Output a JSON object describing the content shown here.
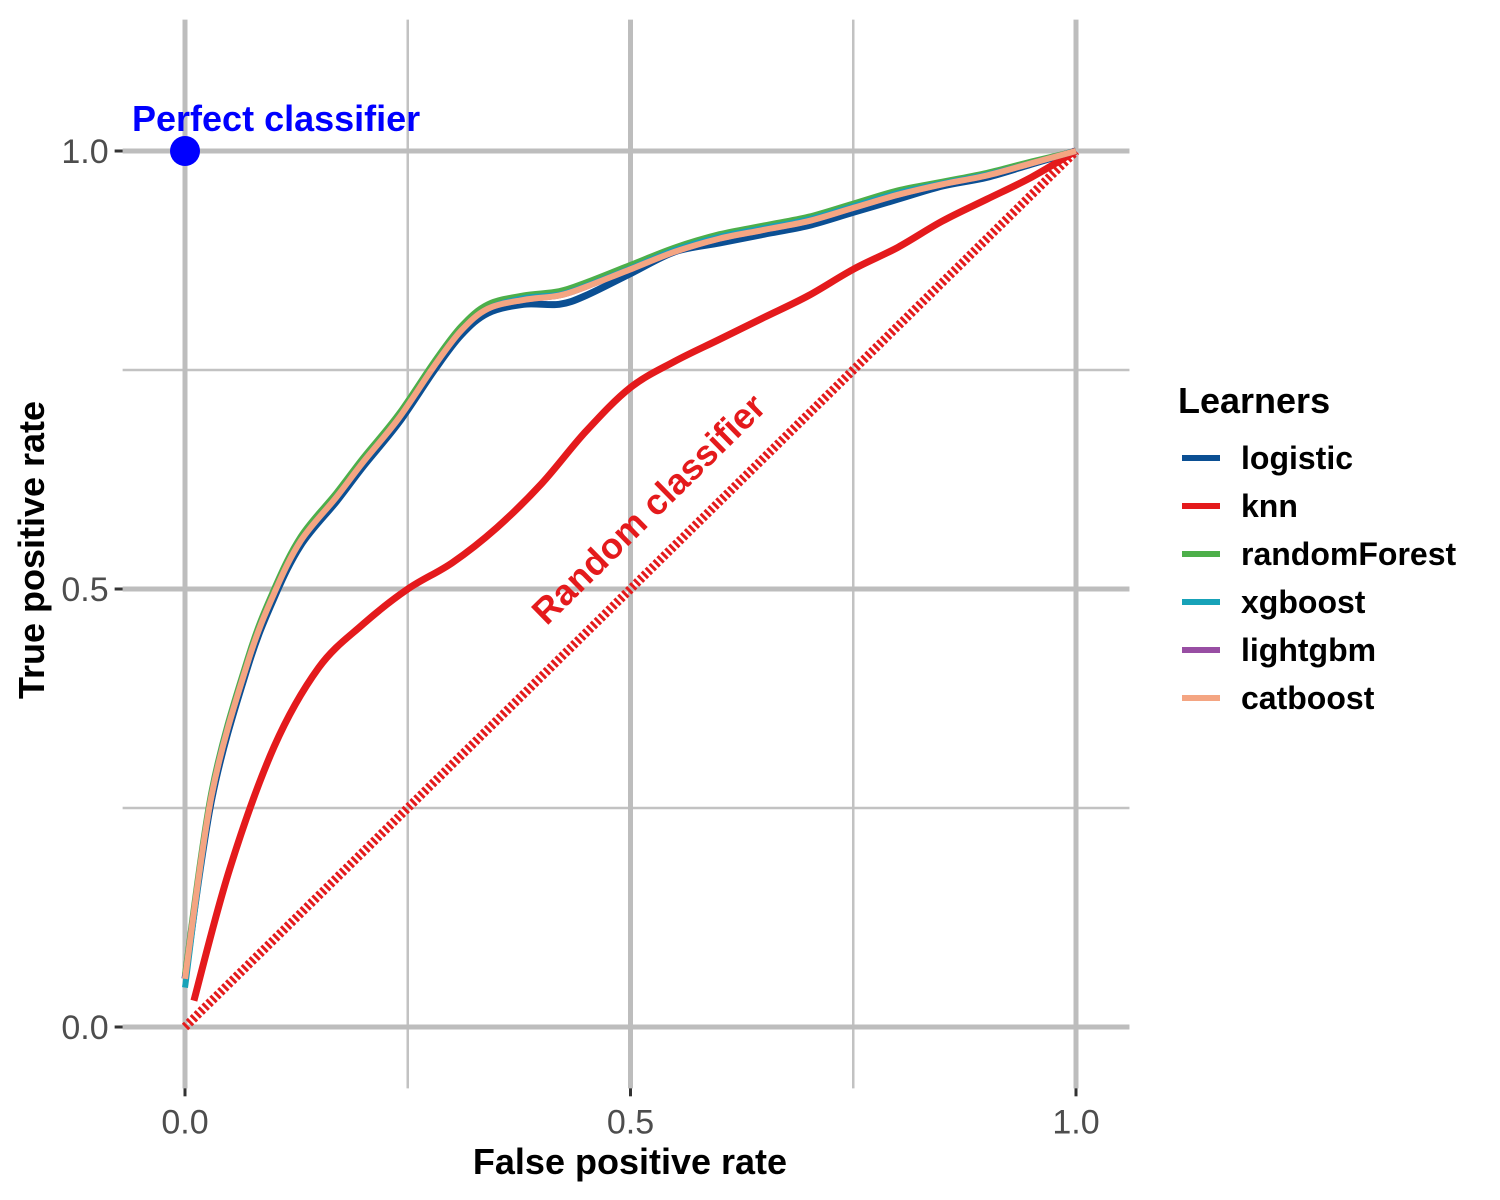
{
  "chart_data": {
    "type": "line",
    "title": "",
    "xlabel": "False positive rate",
    "ylabel": "True positive rate",
    "xlim": [
      -0.07,
      1.06
    ],
    "ylim": [
      -0.07,
      1.15
    ],
    "x_ticks": [
      0.0,
      0.5,
      1.0
    ],
    "y_ticks": [
      0.0,
      0.5,
      1.0
    ],
    "x_tick_labels": [
      "0.0",
      "0.5",
      "1.0"
    ],
    "y_tick_labels": [
      "0.0",
      "0.5",
      "1.0"
    ],
    "grid": true,
    "legend": {
      "title": "Learners",
      "position": "right"
    },
    "series": [
      {
        "name": "logistic",
        "color": "#0b4f93",
        "x": [
          0.0,
          0.03,
          0.07,
          0.1,
          0.13,
          0.17,
          0.2,
          0.24,
          0.28,
          0.31,
          0.34,
          0.38,
          0.42,
          0.45,
          0.5,
          0.55,
          0.6,
          0.65,
          0.7,
          0.75,
          0.8,
          0.85,
          0.9,
          0.95,
          1.0
        ],
        "y": [
          0.055,
          0.26,
          0.41,
          0.49,
          0.55,
          0.6,
          0.64,
          0.69,
          0.75,
          0.79,
          0.815,
          0.825,
          0.825,
          0.835,
          0.86,
          0.885,
          0.895,
          0.905,
          0.915,
          0.93,
          0.945,
          0.96,
          0.97,
          0.985,
          1.0
        ]
      },
      {
        "name": "knn",
        "color": "#e41a1c",
        "x": [
          0.01,
          0.05,
          0.1,
          0.15,
          0.2,
          0.25,
          0.3,
          0.35,
          0.4,
          0.45,
          0.5,
          0.55,
          0.6,
          0.65,
          0.7,
          0.75,
          0.8,
          0.85,
          0.9,
          0.95,
          1.0
        ],
        "y": [
          0.03,
          0.18,
          0.32,
          0.41,
          0.46,
          0.5,
          0.53,
          0.57,
          0.62,
          0.68,
          0.73,
          0.76,
          0.785,
          0.81,
          0.835,
          0.865,
          0.89,
          0.92,
          0.945,
          0.97,
          1.0
        ]
      },
      {
        "name": "randomForest",
        "color": "#4daf4a",
        "x": [
          0.0,
          0.03,
          0.07,
          0.1,
          0.13,
          0.17,
          0.2,
          0.24,
          0.28,
          0.31,
          0.34,
          0.38,
          0.42,
          0.45,
          0.5,
          0.55,
          0.6,
          0.65,
          0.7,
          0.75,
          0.8,
          0.85,
          0.9,
          0.95,
          1.0
        ],
        "y": [
          0.06,
          0.27,
          0.42,
          0.5,
          0.56,
          0.61,
          0.65,
          0.7,
          0.76,
          0.8,
          0.825,
          0.835,
          0.84,
          0.85,
          0.87,
          0.89,
          0.905,
          0.915,
          0.925,
          0.94,
          0.955,
          0.965,
          0.975,
          0.988,
          1.0
        ]
      },
      {
        "name": "xgboost",
        "color": "#17a2b8",
        "x": [
          0.0,
          0.03,
          0.07,
          0.1,
          0.13,
          0.17,
          0.2,
          0.24,
          0.28,
          0.31,
          0.34,
          0.38,
          0.42,
          0.45,
          0.5,
          0.55,
          0.6,
          0.65,
          0.7,
          0.75,
          0.8,
          0.85,
          0.9,
          0.95,
          1.0
        ],
        "y": [
          0.045,
          0.265,
          0.415,
          0.495,
          0.555,
          0.605,
          0.645,
          0.695,
          0.755,
          0.795,
          0.82,
          0.832,
          0.836,
          0.846,
          0.866,
          0.887,
          0.902,
          0.912,
          0.922,
          0.937,
          0.952,
          0.963,
          0.973,
          0.986,
          1.0
        ]
      },
      {
        "name": "lightgbm",
        "color": "#984ea3",
        "x": [
          0.0,
          0.03,
          0.07,
          0.1,
          0.13,
          0.17,
          0.2,
          0.24,
          0.28,
          0.31,
          0.34,
          0.38,
          0.42,
          0.45,
          0.5,
          0.55,
          0.6,
          0.65,
          0.7,
          0.75,
          0.8,
          0.85,
          0.9,
          0.95,
          1.0
        ],
        "y": [
          0.055,
          0.265,
          0.415,
          0.495,
          0.555,
          0.605,
          0.645,
          0.695,
          0.755,
          0.795,
          0.82,
          0.83,
          0.835,
          0.845,
          0.865,
          0.885,
          0.9,
          0.91,
          0.92,
          0.935,
          0.95,
          0.962,
          0.972,
          0.986,
          1.0
        ]
      },
      {
        "name": "catboost",
        "color": "#f4a582",
        "x": [
          0.0,
          0.03,
          0.07,
          0.1,
          0.13,
          0.17,
          0.2,
          0.24,
          0.28,
          0.31,
          0.34,
          0.38,
          0.42,
          0.45,
          0.5,
          0.55,
          0.6,
          0.65,
          0.7,
          0.75,
          0.8,
          0.85,
          0.9,
          0.95,
          1.0
        ],
        "y": [
          0.055,
          0.265,
          0.415,
          0.495,
          0.555,
          0.605,
          0.645,
          0.695,
          0.755,
          0.795,
          0.82,
          0.83,
          0.835,
          0.845,
          0.865,
          0.885,
          0.9,
          0.91,
          0.92,
          0.935,
          0.95,
          0.962,
          0.972,
          0.986,
          1.0
        ]
      }
    ],
    "reference_line": {
      "label": "Random classifier",
      "color": "#e41a1c",
      "x": [
        0.0,
        1.0
      ],
      "y": [
        0.0,
        1.0
      ]
    },
    "reference_point": {
      "label": "Perfect classifier",
      "color": "#0000ff",
      "x": 0.0,
      "y": 1.0
    }
  }
}
